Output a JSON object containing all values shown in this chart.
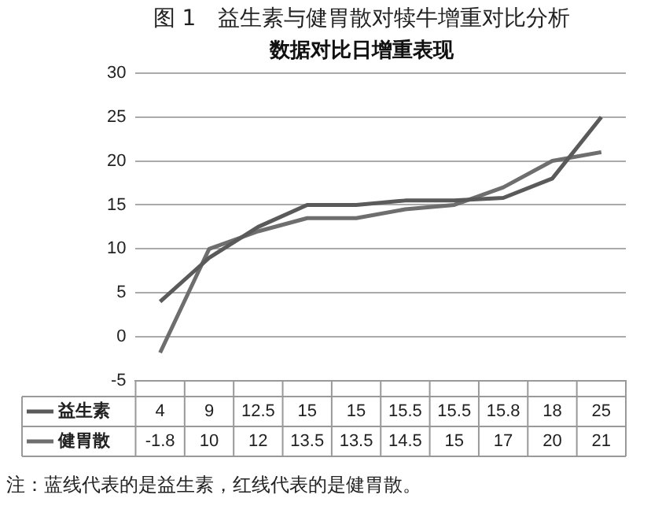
{
  "chart_data": {
    "type": "line",
    "title": "图 1　益生素与健胃散对犊牛增重对比分析",
    "subtitle": "数据对比日增重表现",
    "categories": [
      null,
      null,
      null,
      null,
      null,
      null,
      null,
      null,
      null,
      null
    ],
    "series": [
      {
        "name": "益生素",
        "color": "#5a5a5a",
        "values": [
          4,
          9,
          12.5,
          15,
          15,
          15.5,
          15.5,
          15.8,
          18,
          25
        ]
      },
      {
        "name": "健胃散",
        "color": "#6e6e6e",
        "values": [
          -1.8,
          10,
          12,
          13.5,
          13.5,
          14.5,
          15,
          17,
          20,
          21
        ]
      }
    ],
    "ylim": [
      -5,
      30
    ],
    "yticks": [
      -5,
      0,
      5,
      10,
      15,
      20,
      25,
      30
    ],
    "grid": "y",
    "legend": "bottom",
    "data_labels": true,
    "marker": "none",
    "line_style": "solid",
    "annotations": [
      "注：蓝线代表的是益生素，红线代表的是健胃散。"
    ]
  }
}
